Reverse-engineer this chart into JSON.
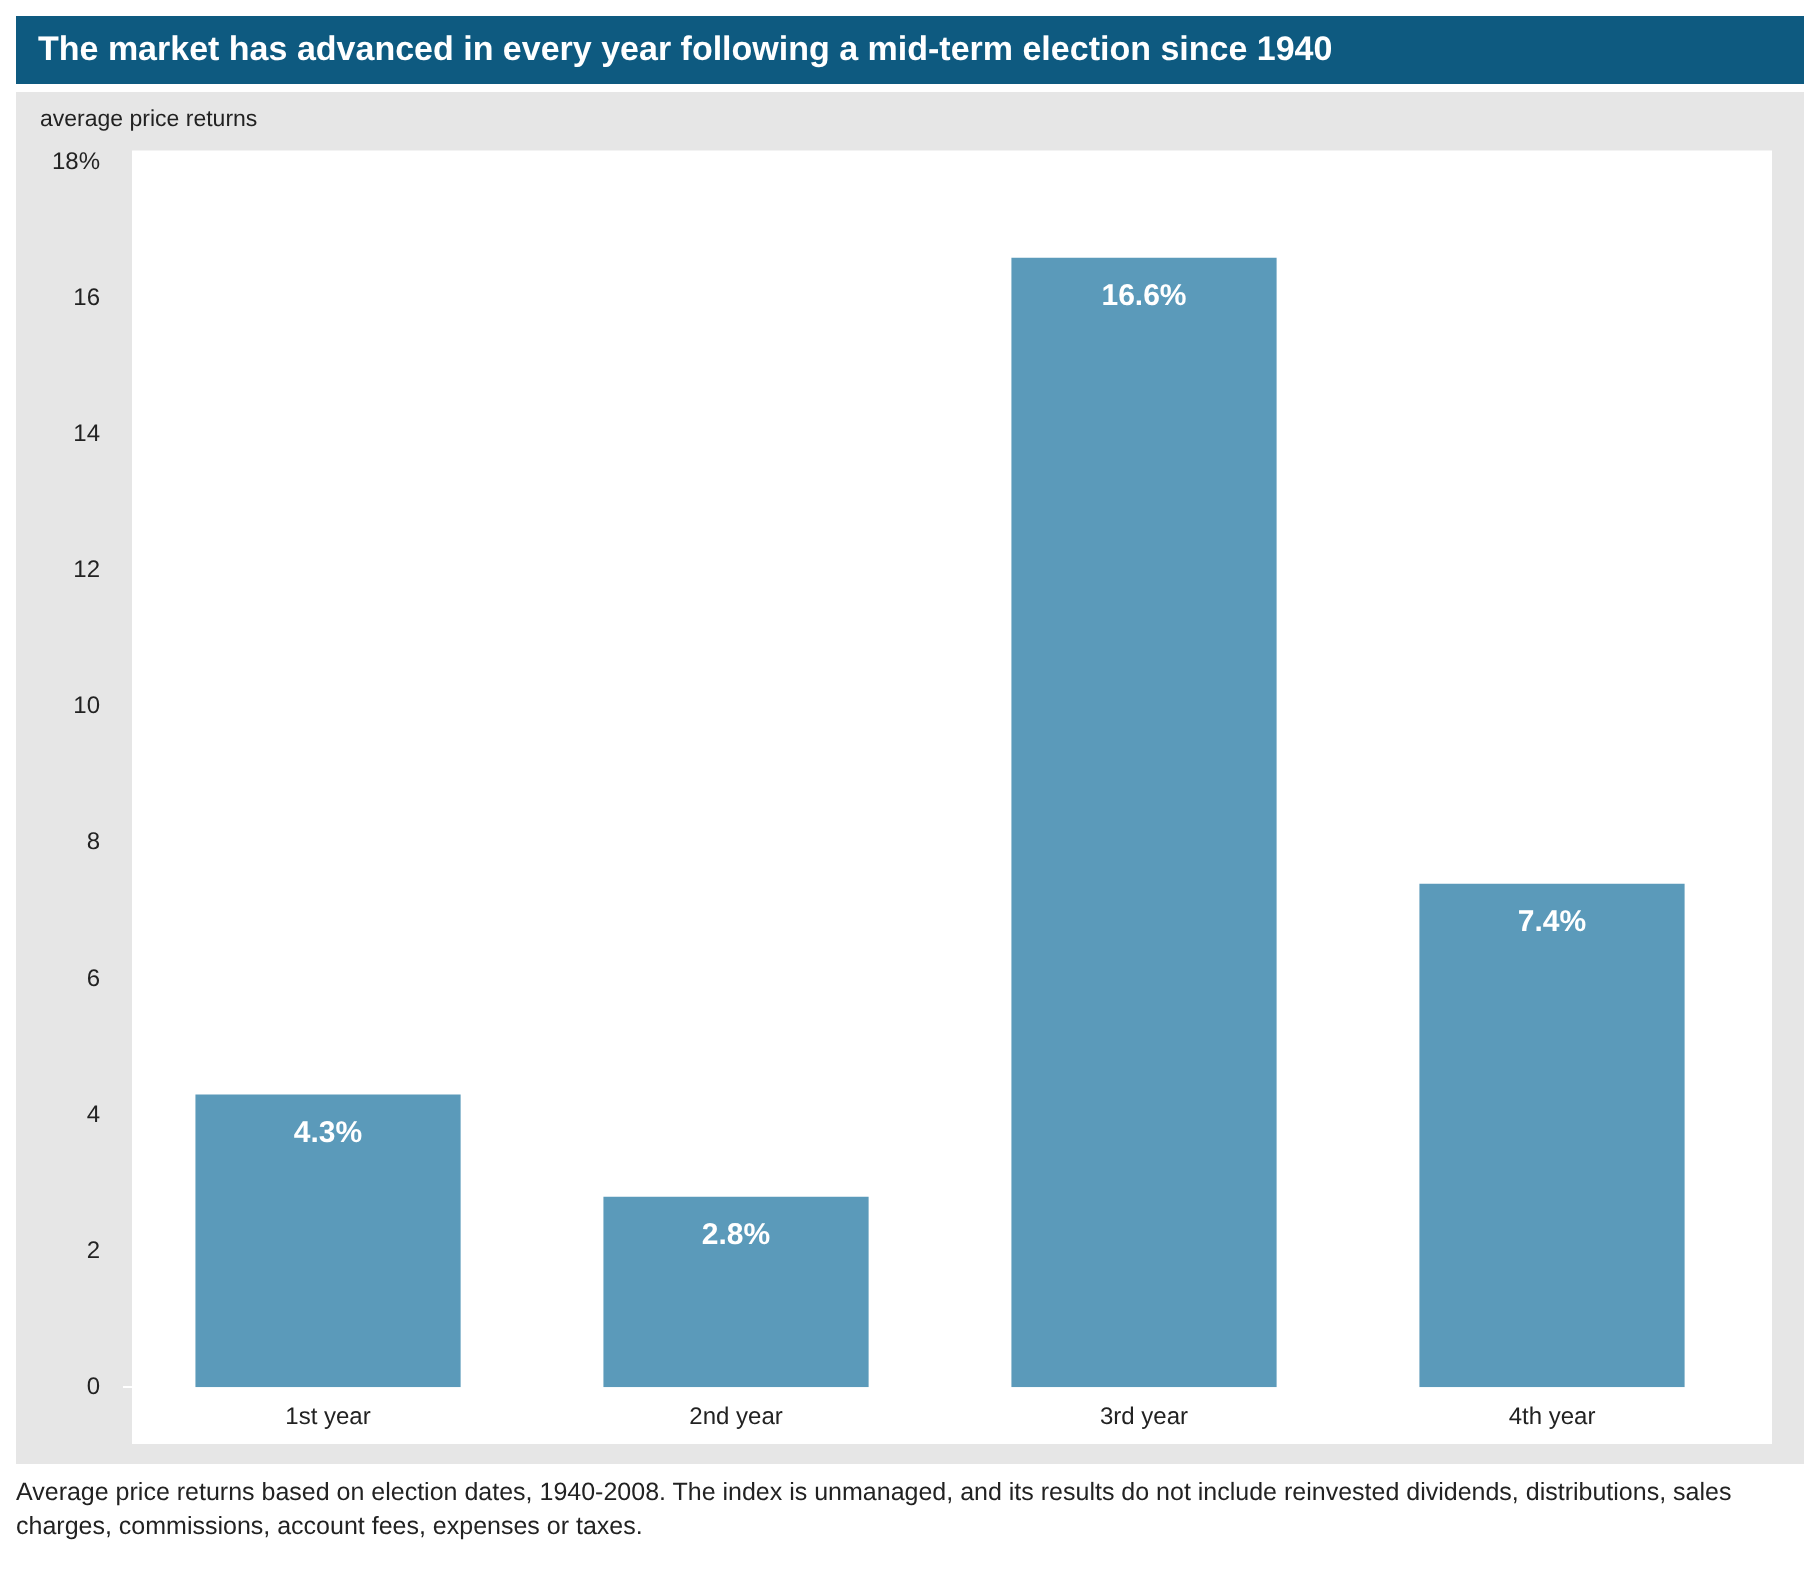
{
  "chart_data": {
    "type": "bar",
    "title": "The market has advanced in every year following a mid-term election since 1940",
    "ylabel": "average price returns",
    "categories": [
      "1st year",
      "2nd year",
      "3rd year",
      "4th year"
    ],
    "values": [
      4.3,
      2.8,
      16.6,
      7.4
    ],
    "value_labels": [
      "4.3%",
      "2.8%",
      "16.6%",
      "7.4%"
    ],
    "color": "#5b9aba",
    "ylim": [
      0,
      18
    ],
    "yticks": [
      0,
      2,
      4,
      6,
      8,
      10,
      12,
      14,
      16,
      {
        "value": 18,
        "label": "18%"
      }
    ],
    "grid": false,
    "legend": false,
    "annotations": [
      "Average price returns based on election dates, 1940-2008. The index is unmanaged, and its results do not include reinvested dividends, distributions, sales charges, commissions, account fees, expenses or taxes."
    ]
  }
}
